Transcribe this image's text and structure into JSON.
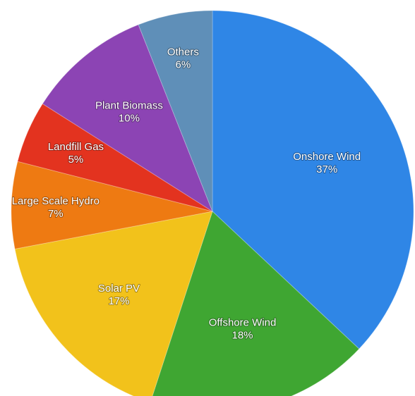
{
  "chart_data": {
    "type": "pie",
    "title": "",
    "slices": [
      {
        "label": "Onshore Wind",
        "value": 37,
        "value_label": "37%",
        "color": "#2f86e6"
      },
      {
        "label": "Offshore Wind",
        "value": 18,
        "value_label": "18%",
        "color": "#3fa632"
      },
      {
        "label": "Solar PV",
        "value": 17,
        "value_label": "17%",
        "color": "#f2c21b"
      },
      {
        "label": "Large Scale Hydro",
        "value": 7,
        "value_label": "7%",
        "color": "#ee7a12"
      },
      {
        "label": "Landfill Gas",
        "value": 5,
        "value_label": "5%",
        "color": "#e3331f"
      },
      {
        "label": "Plant Biomass",
        "value": 10,
        "value_label": "10%",
        "color": "#8c44b4"
      },
      {
        "label": "Others",
        "value": 6,
        "value_label": "6%",
        "color": "#5f8fb8"
      }
    ]
  }
}
